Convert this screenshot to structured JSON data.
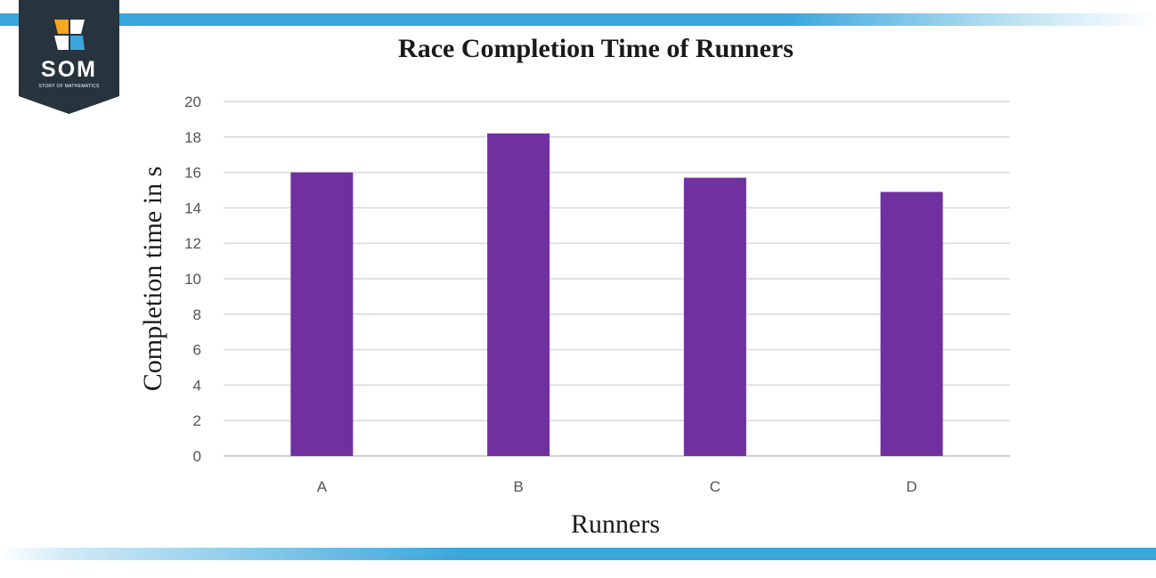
{
  "logo": {
    "text": "SOM",
    "subtext": "STORY OF MATHEMATICS"
  },
  "colors": {
    "bar": "#7030a0",
    "band": "#3aa6db",
    "logo_bg": "#27333d",
    "grid": "#d9d9d9"
  },
  "chart_data": {
    "type": "bar",
    "title": "Race Completion Time of Runners",
    "xlabel": "Runners",
    "ylabel": "Completion time in s",
    "categories": [
      "A",
      "B",
      "C",
      "D"
    ],
    "values": [
      16,
      18.2,
      15.7,
      14.9
    ],
    "ylim": [
      0,
      20
    ],
    "yticks": [
      0,
      2,
      4,
      6,
      8,
      10,
      12,
      14,
      16,
      18,
      20
    ],
    "grid": true,
    "legend": "none"
  }
}
